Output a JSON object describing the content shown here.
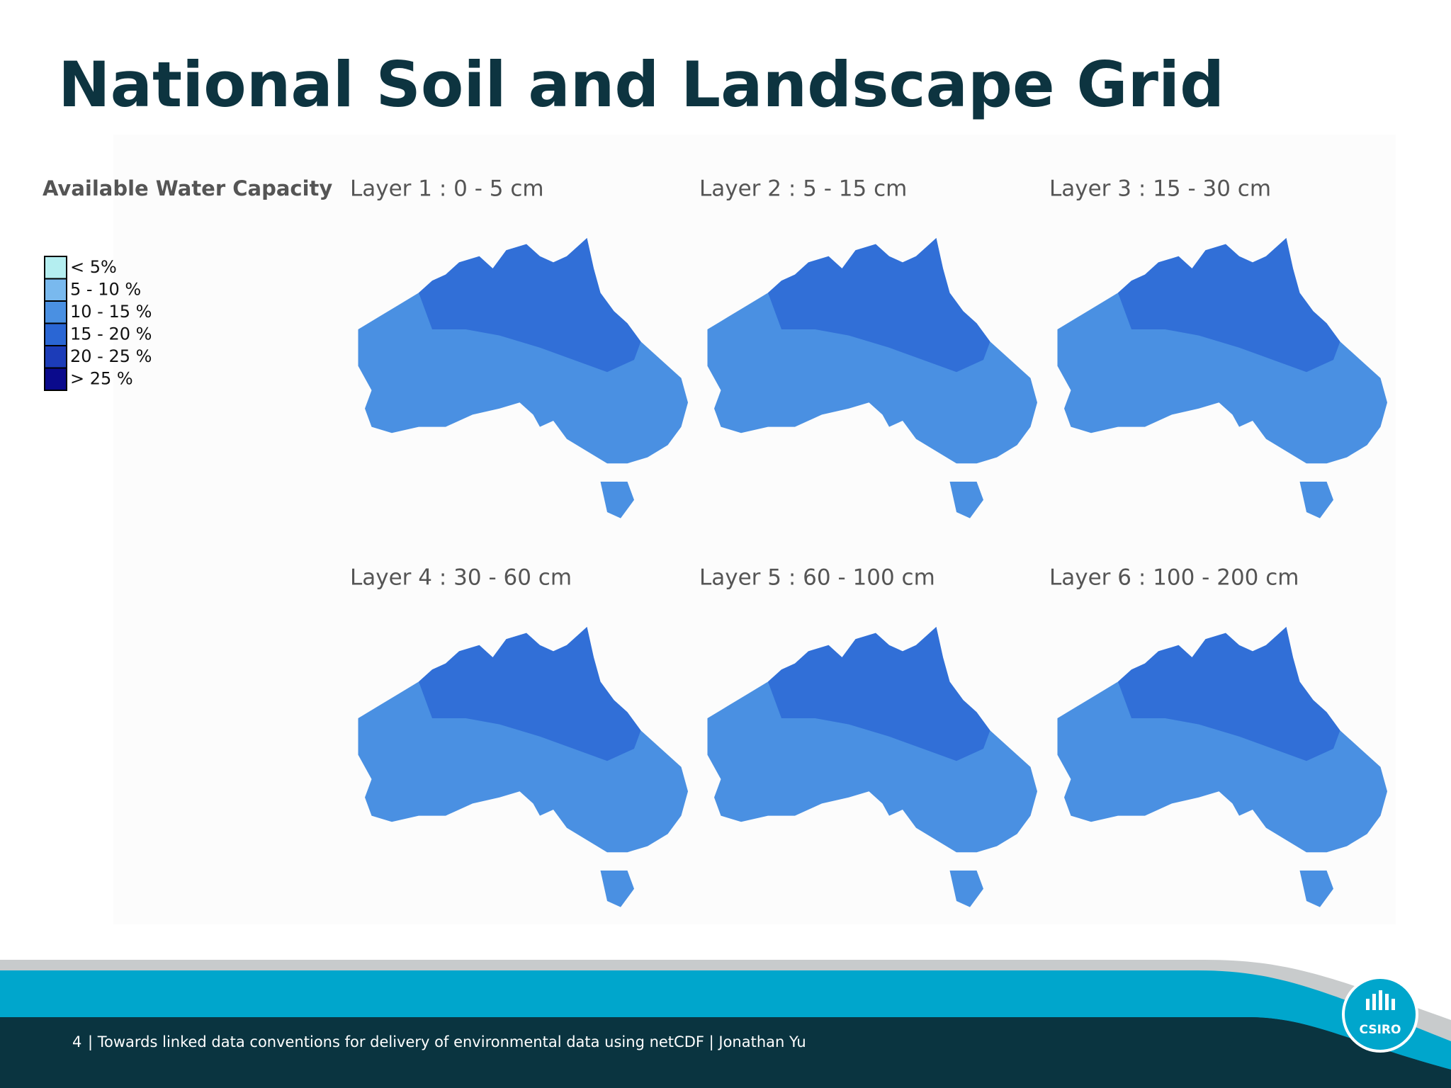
{
  "header": {
    "title": "National Soil and Landscape Grid"
  },
  "legend": {
    "title": "Available Water Capacity",
    "items": [
      {
        "label": "< 5%",
        "color": "#b4eef0"
      },
      {
        "label": "5 - 10 %",
        "color": "#79b9ee"
      },
      {
        "label": "10 - 15 %",
        "color": "#4a90e2"
      },
      {
        "label": "15  - 20 %",
        "color": "#2a66d4"
      },
      {
        "label": "20 - 25 %",
        "color": "#1c3cb8"
      },
      {
        "label": "> 25 %",
        "color": "#0a0a8c"
      }
    ]
  },
  "panels": [
    {
      "label": "Layer 1 : 0 - 5 cm"
    },
    {
      "label": "Layer 2 : 5 - 15 cm"
    },
    {
      "label": "Layer 3 : 15 - 30 cm"
    },
    {
      "label": "Layer 4 : 30 - 60 cm"
    },
    {
      "label": "Layer 5 : 60 - 100 cm"
    },
    {
      "label": "Layer 6 : 100 - 200 cm"
    }
  ],
  "footer": {
    "page": "4",
    "text": "|  Towards linked data conventions for delivery of environmental data using netCDF | Jonathan Yu",
    "logo": "CSIRO"
  }
}
